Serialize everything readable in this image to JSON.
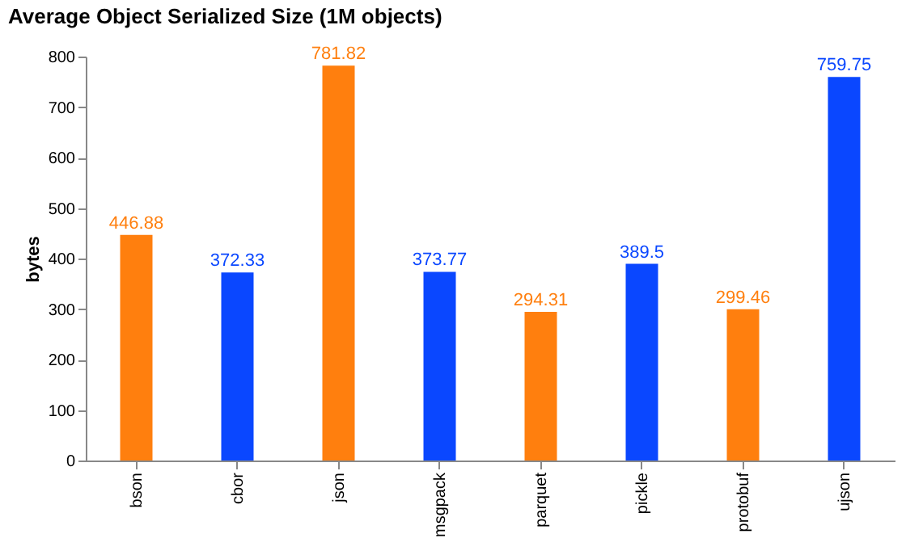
{
  "chart_data": {
    "type": "bar",
    "title": "Average Object Serialized Size (1M objects)",
    "ylabel": "bytes",
    "categories": [
      "bson",
      "cbor",
      "json",
      "msgpack",
      "parquet",
      "pickle",
      "protobuf",
      "ujson"
    ],
    "values": [
      446.88,
      372.33,
      781.82,
      373.77,
      294.31,
      389.5,
      299.46,
      759.75
    ],
    "colors": [
      "#ff7f0e",
      "#0a47ff",
      "#ff7f0e",
      "#0a47ff",
      "#ff7f0e",
      "#0a47ff",
      "#ff7f0e",
      "#0a47ff"
    ],
    "ylim": [
      0,
      800
    ],
    "yticks": [
      0,
      100,
      200,
      300,
      400,
      500,
      600,
      700,
      800
    ],
    "data_labels": true,
    "grid": false
  }
}
